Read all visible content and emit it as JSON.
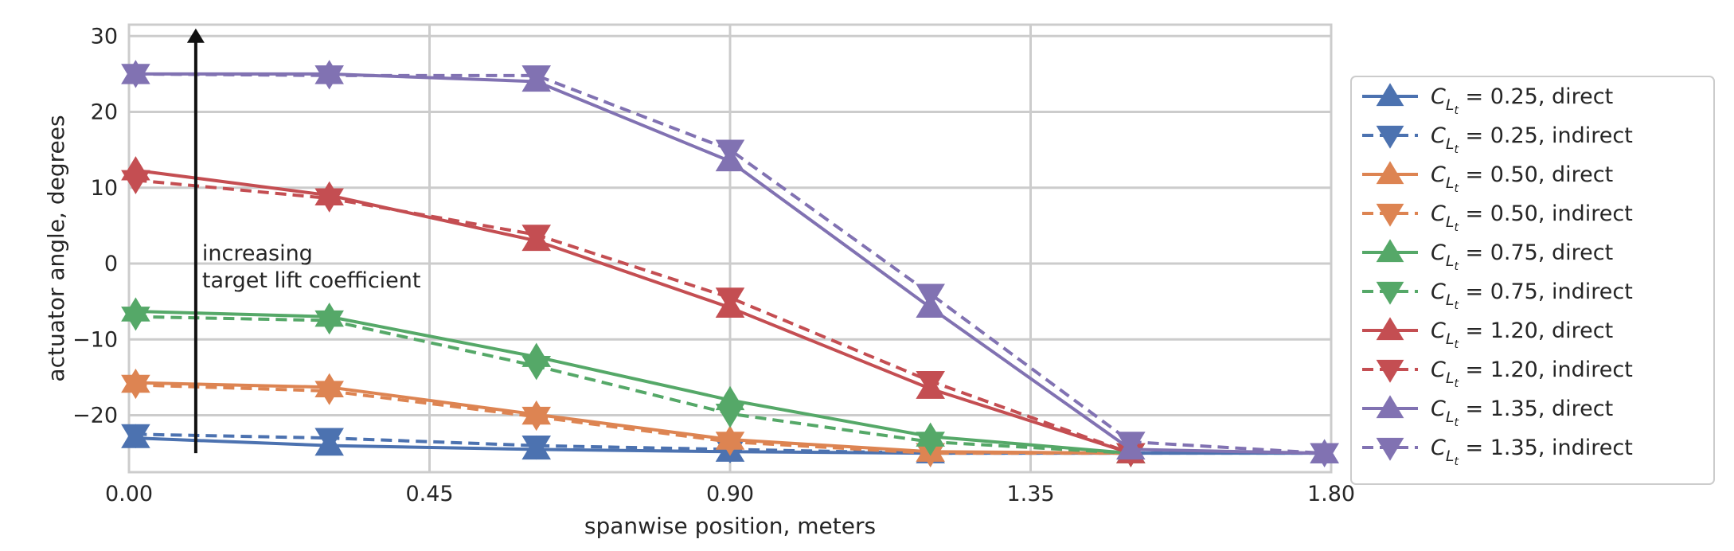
{
  "chart_data": {
    "type": "line",
    "title": "",
    "xlabel": "spanwise position, meters",
    "ylabel": "actuator angle, degrees",
    "xlim": [
      0.0,
      1.8
    ],
    "ylim": [
      -27.5,
      31.5
    ],
    "xticks": [
      0.0,
      0.45,
      0.9,
      1.35,
      1.8
    ],
    "xtick_labels": [
      "0.00",
      "0.45",
      "0.90",
      "1.35",
      "1.80"
    ],
    "yticks": [
      -20,
      -10,
      0,
      10,
      20,
      30
    ],
    "ytick_labels": [
      "−20",
      "−10",
      "0",
      "10",
      "20",
      "30"
    ],
    "grid": true,
    "legend_position": "outside right",
    "annotation": {
      "text_line1": "increasing",
      "text_line2": "target lift coefficient",
      "arrow_x": 0.1,
      "arrow_from_y": -25,
      "arrow_to_y": 31
    },
    "series": [
      {
        "name_prefix": "C",
        "name_sub": "L",
        "name_subsub": "t",
        "name_suffix": " = 0.25, direct",
        "style": "direct",
        "color": "#4c72b0",
        "x": [
          0.01,
          0.3,
          0.61,
          0.9,
          1.2,
          1.5,
          1.79
        ],
        "y": [
          -23,
          -24,
          -24.5,
          -24.8,
          -25,
          -25,
          -25
        ]
      },
      {
        "name_prefix": "C",
        "name_sub": "L",
        "name_subsub": "t",
        "name_suffix": " = 0.25, indirect",
        "style": "indirect",
        "color": "#4c72b0",
        "x": [
          0.01,
          0.3,
          0.61,
          0.9,
          1.2,
          1.5,
          1.79
        ],
        "y": [
          -22.5,
          -23,
          -24,
          -24.5,
          -25,
          -25,
          -25
        ]
      },
      {
        "name_prefix": "C",
        "name_sub": "L",
        "name_subsub": "t",
        "name_suffix": " = 0.50, direct",
        "style": "direct",
        "color": "#dd8452",
        "x": [
          0.01,
          0.3,
          0.61,
          0.9,
          1.2,
          1.5
        ],
        "y": [
          -15.7,
          -16.3,
          -19.9,
          -23.2,
          -24.8,
          -25
        ]
      },
      {
        "name_prefix": "C",
        "name_sub": "L",
        "name_subsub": "t",
        "name_suffix": " = 0.50, indirect",
        "style": "indirect",
        "color": "#dd8452",
        "x": [
          0.01,
          0.3,
          0.61,
          0.9,
          1.2,
          1.5
        ],
        "y": [
          -16,
          -16.8,
          -20.2,
          -23.5,
          -25,
          -25
        ]
      },
      {
        "name_prefix": "C",
        "name_sub": "L",
        "name_subsub": "t",
        "name_suffix": " = 0.75, direct",
        "style": "direct",
        "color": "#55a868",
        "x": [
          0.01,
          0.3,
          0.61,
          0.9,
          1.2,
          1.5
        ],
        "y": [
          -6.3,
          -7,
          -12.3,
          -18,
          -22.8,
          -25
        ]
      },
      {
        "name_prefix": "C",
        "name_sub": "L",
        "name_subsub": "t",
        "name_suffix": " = 0.75, indirect",
        "style": "indirect",
        "color": "#55a868",
        "x": [
          0.01,
          0.3,
          0.61,
          0.9,
          1.2,
          1.5
        ],
        "y": [
          -7,
          -7.5,
          -13.5,
          -19.8,
          -23.5,
          -25
        ]
      },
      {
        "name_prefix": "C",
        "name_sub": "L",
        "name_subsub": "t",
        "name_suffix": " = 1.20, direct",
        "style": "direct",
        "color": "#c44e52",
        "x": [
          0.01,
          0.3,
          0.61,
          0.9,
          1.2,
          1.5
        ],
        "y": [
          12.3,
          9,
          3,
          -5.8,
          -16.5,
          -25
        ]
      },
      {
        "name_prefix": "C",
        "name_sub": "L",
        "name_subsub": "t",
        "name_suffix": " = 1.20, indirect",
        "style": "indirect",
        "color": "#c44e52",
        "x": [
          0.01,
          0.3,
          0.61,
          0.9,
          1.2,
          1.5
        ],
        "y": [
          11,
          8.6,
          3.8,
          -4.5,
          -15.5,
          -25
        ]
      },
      {
        "name_prefix": "C",
        "name_sub": "L",
        "name_subsub": "t",
        "name_suffix": " = 1.35, direct",
        "style": "direct",
        "color": "#8172b2",
        "x": [
          0.01,
          0.3,
          0.61,
          0.9,
          1.2,
          1.5,
          1.79
        ],
        "y": [
          25,
          25,
          24,
          13.5,
          -5.8,
          -24.5,
          -25
        ]
      },
      {
        "name_prefix": "C",
        "name_sub": "L",
        "name_subsub": "t",
        "name_suffix": " = 1.35, indirect",
        "style": "indirect",
        "color": "#8172b2",
        "x": [
          0.01,
          0.3,
          0.61,
          0.9,
          1.2,
          1.5,
          1.79
        ],
        "y": [
          25,
          24.8,
          24.8,
          15,
          -4,
          -23.5,
          -25
        ]
      }
    ]
  }
}
